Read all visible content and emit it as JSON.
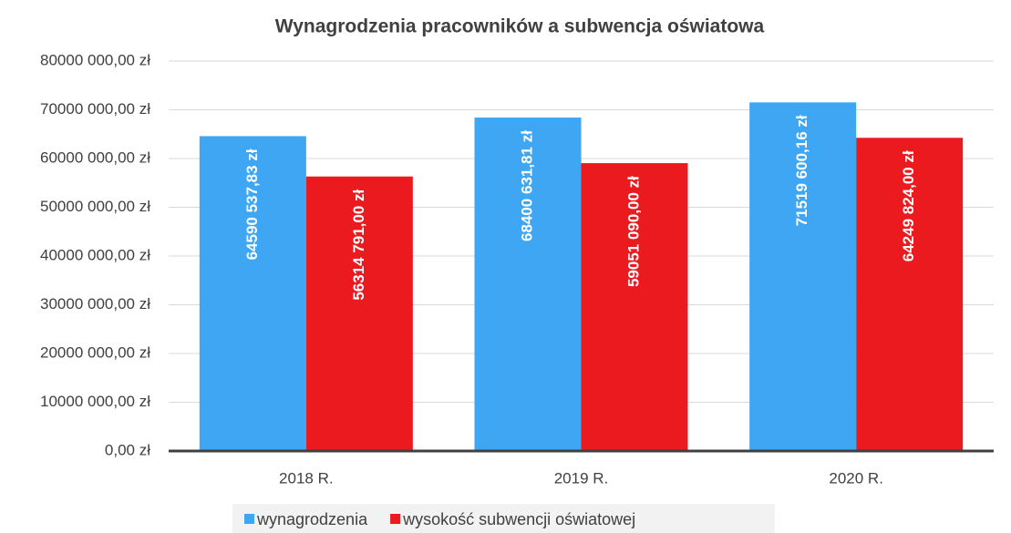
{
  "chart_data": {
    "type": "bar",
    "title": "Wynagrodzenia pracowników a subwencja oświatowa",
    "categories": [
      "2018 R.",
      "2019 R.",
      "2020 R."
    ],
    "series": [
      {
        "name": "wynagrodzenia",
        "color": "#3ea6f2",
        "values": [
          64590537.83,
          68400631.81,
          71519600.16
        ],
        "value_labels": [
          "64590 537,83 zł",
          "68400 631,81 zł",
          "71519 600,16 zł"
        ]
      },
      {
        "name": "wysokość subwencji oświatowej",
        "color": "#ea1a1f",
        "values": [
          56314791,
          59051090,
          64249824
        ],
        "value_labels": [
          "56314 791,00 zł",
          "59051 090,00 zł",
          "64249 824,00 zł"
        ]
      }
    ],
    "ylim": [
      0,
      80000000
    ],
    "yticks": [
      {
        "value": 0,
        "label": "0,00 zł"
      },
      {
        "value": 10000000,
        "label": "10000 000,00 zł"
      },
      {
        "value": 20000000,
        "label": "20000 000,00 zł"
      },
      {
        "value": 30000000,
        "label": "30000 000,00 zł"
      },
      {
        "value": 40000000,
        "label": "40000 000,00 zł"
      },
      {
        "value": 50000000,
        "label": "50000 000,00 zł"
      },
      {
        "value": 60000000,
        "label": "60000 000,00 zł"
      },
      {
        "value": 70000000,
        "label": "70000 000,00 zł"
      },
      {
        "value": 80000000,
        "label": "80000 000,00 zł"
      }
    ],
    "grid": true,
    "legend": "bottom"
  }
}
